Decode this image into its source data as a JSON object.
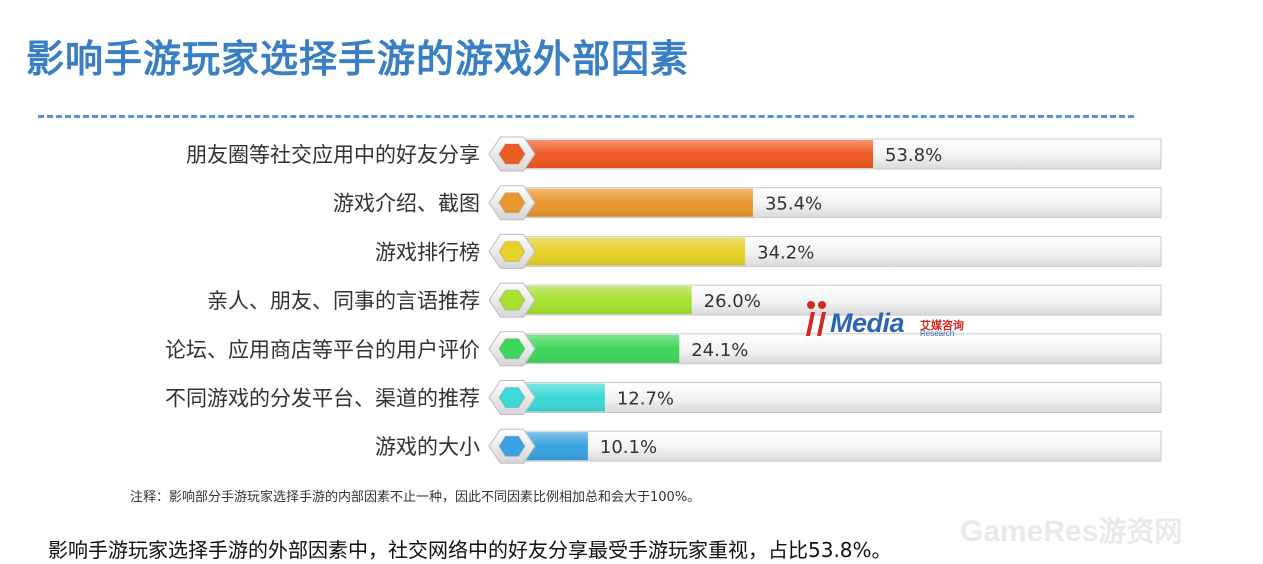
{
  "title": "影响手游玩家选择手游的游戏外部因素",
  "note": "注释：影响部分手游玩家选择手游的内部因素不止一种，因此不同因素比例相加总和会大于100%。",
  "summary": "影响手游玩家选择手游的外部因素中，社交网络中的好友分享最受手游玩家重视，占比53.8%。",
  "logo": {
    "word": "Media",
    "cn": "艾媒咨询",
    "sub": "Research"
  },
  "watermark": {
    "en": "GameRes",
    "cn": "游资网"
  },
  "chart_data": {
    "type": "bar",
    "orientation": "horizontal",
    "categories": [
      "朋友圈等社交应用中的好友分享",
      "游戏介绍、截图",
      "游戏排行榜",
      "亲人、朋友、同事的言语推荐",
      "论坛、应用商店等平台的用户评价",
      "不同游戏的分发平台、渠道的推荐",
      "游戏的大小"
    ],
    "values": [
      53.8,
      35.4,
      34.2,
      26.0,
      24.1,
      12.7,
      10.1
    ],
    "value_labels": [
      "53.8%",
      "35.4%",
      "34.2%",
      "26.0%",
      "24.1%",
      "12.7%",
      "10.1%"
    ],
    "colors": [
      "#ee5a24",
      "#e8962e",
      "#e6d129",
      "#a6e030",
      "#3fd65a",
      "#3cd9d6",
      "#3aa2e0"
    ],
    "xlim": [
      0,
      100
    ],
    "grid": false,
    "legend": "none"
  }
}
